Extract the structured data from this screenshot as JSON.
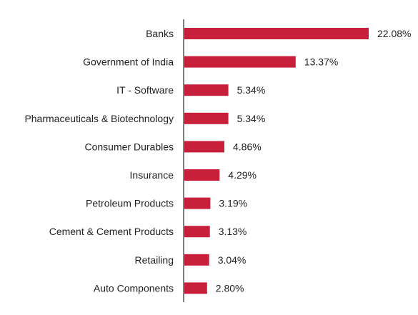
{
  "colors": {
    "bar": "#c8203a",
    "axis": "#7f7f7f",
    "text": "#222222"
  },
  "chart_data": {
    "type": "bar",
    "orientation": "horizontal",
    "categories": [
      "Banks",
      "Government of India",
      "IT - Software",
      "Pharmaceuticals & Biotechnology",
      "Consumer Durables",
      "Insurance",
      "Petroleum Products",
      "Cement & Cement Products",
      "Retailing",
      "Auto Components"
    ],
    "values": [
      22.08,
      13.37,
      5.34,
      5.34,
      4.86,
      4.29,
      3.19,
      3.13,
      3.04,
      2.8
    ],
    "value_labels": [
      "22.08%",
      "13.37%",
      "5.34%",
      "5.34%",
      "4.86%",
      "4.29%",
      "3.19%",
      "3.13%",
      "3.04%",
      "2.80%"
    ],
    "title": "",
    "xlabel": "",
    "ylabel": "",
    "xlim": [
      0,
      22.08
    ],
    "grid": false,
    "legend": "none"
  }
}
